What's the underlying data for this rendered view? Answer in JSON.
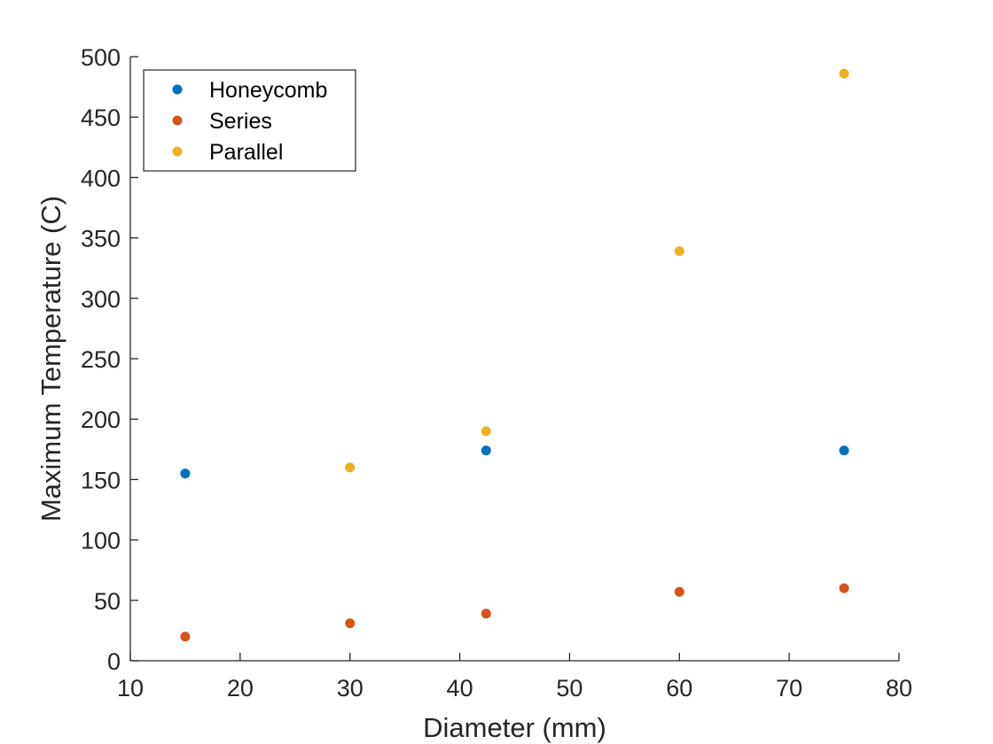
{
  "chart_data": {
    "type": "scatter",
    "title": "",
    "xlabel": "Diameter (mm)",
    "ylabel": "Maximum Temperature (C)",
    "xlim": [
      10,
      80
    ],
    "ylim": [
      0,
      500
    ],
    "xticks": [
      10,
      20,
      30,
      40,
      50,
      60,
      70,
      80
    ],
    "yticks": [
      0,
      50,
      100,
      150,
      200,
      250,
      300,
      350,
      400,
      450,
      500
    ],
    "grid": false,
    "legend_position": "top-left",
    "series": [
      {
        "name": "Honeycomb",
        "color": "#0072BD",
        "x": [
          15,
          42.4,
          75
        ],
        "y": [
          155,
          174,
          174
        ]
      },
      {
        "name": "Series",
        "color": "#D95319",
        "x": [
          15,
          30,
          42.4,
          60,
          75
        ],
        "y": [
          20,
          31,
          39,
          57,
          60
        ]
      },
      {
        "name": "Parallel",
        "color": "#EDB120",
        "x": [
          30,
          42.4,
          60,
          75
        ],
        "y": [
          160,
          190,
          339,
          486
        ]
      }
    ]
  }
}
